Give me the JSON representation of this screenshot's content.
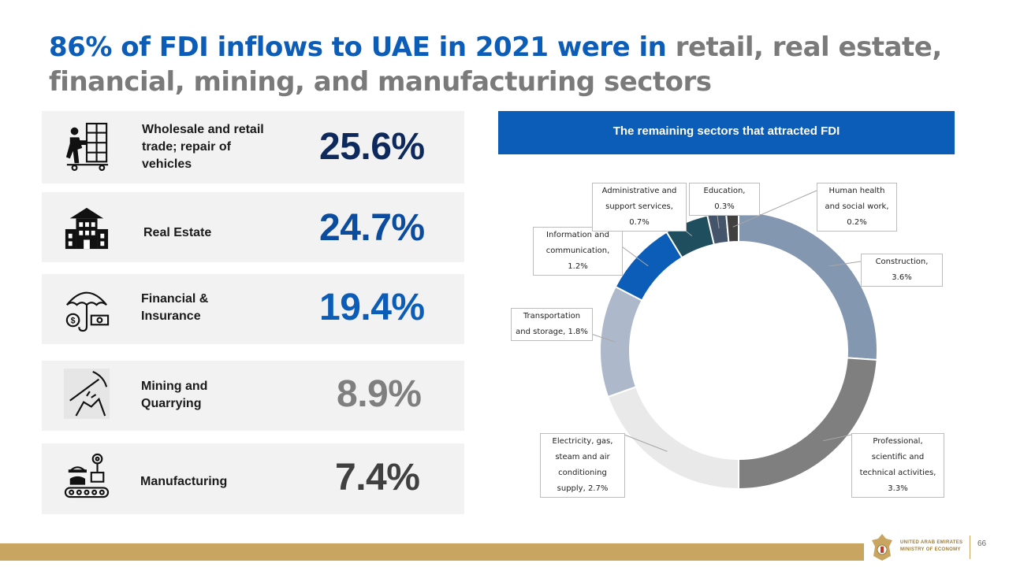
{
  "title": {
    "highlight": "86% of FDI inflows to UAE in 2021 were in",
    "rest": "retail, real estate, financial, mining, and manufacturing sectors"
  },
  "sectors": [
    {
      "label": "Wholesale and retail trade; repair of vehicles",
      "value": "25.6%",
      "color": "#0E2A5C",
      "icon": "warehouse-worker-icon"
    },
    {
      "label": "Real Estate",
      "value": "24.7%",
      "color": "#0B4C9E",
      "icon": "building-icon"
    },
    {
      "label": "Financial & Insurance",
      "value": "19.4%",
      "color": "#0B5DB8",
      "icon": "umbrella-money-icon"
    },
    {
      "label": "Mining and Quarrying",
      "value": "8.9%",
      "color": "#7f7f7f",
      "icon": "pickaxe-icon"
    },
    {
      "label": "Manufacturing",
      "value": "7.4%",
      "color": "#404040",
      "icon": "factory-worker-icon"
    }
  ],
  "banner": "The remaining sectors that attracted FDI",
  "chart_data": {
    "type": "pie",
    "donut": true,
    "title": "The remaining sectors that attracted FDI",
    "categories": [
      "Construction",
      "Professional, scientific and technical activities",
      "Electricity, gas, steam and air conditioning supply",
      "Transportation and storage",
      "Information and communication",
      "Administrative and support services",
      "Education",
      "Human health and social work"
    ],
    "values": [
      3.6,
      3.3,
      2.7,
      1.8,
      1.2,
      0.7,
      0.3,
      0.2
    ],
    "colors": [
      "#8497B0",
      "#7f7f7f",
      "#e9e9e9",
      "#adb9ca",
      "#0B5DB8",
      "#1F4E5F",
      "#44546A",
      "#404040"
    ],
    "labels": [
      "Construction, 3.6%",
      "Professional, scientific and technical activities, 3.3%",
      "Electricity, gas, steam and air conditioning supply, 2.7%",
      "Transportation and storage, 1.8%",
      "Information and communication, 1.2%",
      "Administrative and support services, 0.7%",
      "Education, 0.3%",
      "Human health and social work, 0.2%"
    ],
    "legend": "callouts"
  },
  "footer": {
    "org_line1": "UNITED ARAB EMIRATES",
    "org_line2": "MINISTRY OF ECONOMY",
    "page_number": "66"
  }
}
